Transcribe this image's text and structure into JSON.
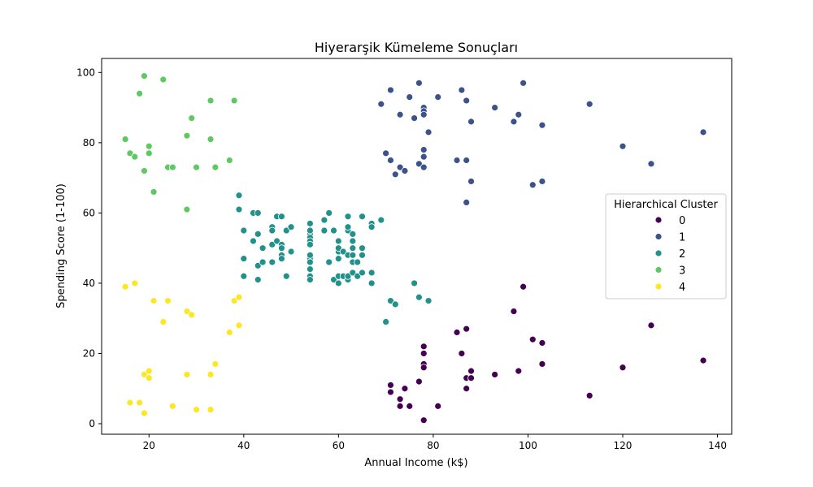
{
  "chart_data": {
    "type": "scatter",
    "title": "Hiyerarşik Kümeleme Sonuçları",
    "xlabel": "Annual Income (k$)",
    "ylabel": "Spending Score (1-100)",
    "xlim": [
      10,
      143
    ],
    "ylim": [
      -3,
      104
    ],
    "xticks": [
      20,
      40,
      60,
      80,
      100,
      120,
      140
    ],
    "yticks": [
      0,
      20,
      40,
      60,
      80,
      100
    ],
    "grid": false,
    "legend": {
      "title": "Hierarchical Cluster",
      "placement": "center-right"
    },
    "series": [
      {
        "name": "0",
        "color": "#440154",
        "points": [
          [
            71,
            11
          ],
          [
            71,
            9
          ],
          [
            73,
            5
          ],
          [
            73,
            7
          ],
          [
            74,
            10
          ],
          [
            75,
            5
          ],
          [
            77,
            12
          ],
          [
            78,
            22
          ],
          [
            78,
            17
          ],
          [
            78,
            16
          ],
          [
            78,
            20
          ],
          [
            78,
            1
          ],
          [
            81,
            5
          ],
          [
            85,
            26
          ],
          [
            86,
            20
          ],
          [
            87,
            27
          ],
          [
            87,
            13
          ],
          [
            87,
            10
          ],
          [
            88,
            13
          ],
          [
            88,
            15
          ],
          [
            93,
            14
          ],
          [
            97,
            32
          ],
          [
            98,
            15
          ],
          [
            99,
            39
          ],
          [
            101,
            24
          ],
          [
            103,
            17
          ],
          [
            103,
            23
          ],
          [
            113,
            8
          ],
          [
            120,
            16
          ],
          [
            126,
            28
          ],
          [
            137,
            18
          ]
        ]
      },
      {
        "name": "1",
        "color": "#3b528b",
        "points": [
          [
            69,
            91
          ],
          [
            70,
            77
          ],
          [
            71,
            95
          ],
          [
            71,
            75
          ],
          [
            72,
            71
          ],
          [
            73,
            88
          ],
          [
            73,
            73
          ],
          [
            74,
            72
          ],
          [
            75,
            93
          ],
          [
            76,
            87
          ],
          [
            77,
            97
          ],
          [
            77,
            74
          ],
          [
            78,
            90
          ],
          [
            78,
            89
          ],
          [
            78,
            88
          ],
          [
            78,
            78
          ],
          [
            78,
            76
          ],
          [
            78,
            73
          ],
          [
            79,
            83
          ],
          [
            81,
            93
          ],
          [
            85,
            75
          ],
          [
            86,
            95
          ],
          [
            87,
            92
          ],
          [
            87,
            75
          ],
          [
            87,
            63
          ],
          [
            88,
            86
          ],
          [
            88,
            69
          ],
          [
            93,
            90
          ],
          [
            97,
            86
          ],
          [
            98,
            88
          ],
          [
            99,
            97
          ],
          [
            101,
            68
          ],
          [
            103,
            85
          ],
          [
            103,
            69
          ],
          [
            113,
            91
          ],
          [
            120,
            79
          ],
          [
            126,
            74
          ],
          [
            137,
            83
          ]
        ]
      },
      {
        "name": "2",
        "color": "#21918c",
        "points": [
          [
            39,
            61
          ],
          [
            39,
            65
          ],
          [
            40,
            55
          ],
          [
            40,
            47
          ],
          [
            40,
            42
          ],
          [
            42,
            52
          ],
          [
            42,
            60
          ],
          [
            43,
            54
          ],
          [
            43,
            60
          ],
          [
            43,
            45
          ],
          [
            43,
            41
          ],
          [
            44,
            50
          ],
          [
            44,
            46
          ],
          [
            46,
            51
          ],
          [
            46,
            46
          ],
          [
            46,
            56
          ],
          [
            46,
            55
          ],
          [
            47,
            52
          ],
          [
            47,
            59
          ],
          [
            48,
            51
          ],
          [
            48,
            59
          ],
          [
            48,
            50
          ],
          [
            48,
            48
          ],
          [
            48,
            47
          ],
          [
            49,
            55
          ],
          [
            49,
            42
          ],
          [
            50,
            49
          ],
          [
            50,
            56
          ],
          [
            54,
            47
          ],
          [
            54,
            54
          ],
          [
            54,
            53
          ],
          [
            54,
            48
          ],
          [
            54,
            52
          ],
          [
            54,
            42
          ],
          [
            54,
            51
          ],
          [
            54,
            55
          ],
          [
            54,
            41
          ],
          [
            54,
            44
          ],
          [
            54,
            57
          ],
          [
            54,
            46
          ],
          [
            57,
            58
          ],
          [
            57,
            55
          ],
          [
            58,
            60
          ],
          [
            58,
            46
          ],
          [
            59,
            55
          ],
          [
            59,
            41
          ],
          [
            60,
            49
          ],
          [
            60,
            40
          ],
          [
            60,
            42
          ],
          [
            60,
            52
          ],
          [
            60,
            47
          ],
          [
            60,
            50
          ],
          [
            61,
            42
          ],
          [
            61,
            49
          ],
          [
            62,
            41
          ],
          [
            62,
            48
          ],
          [
            62,
            59
          ],
          [
            62,
            55
          ],
          [
            62,
            56
          ],
          [
            62,
            42
          ],
          [
            63,
            50
          ],
          [
            63,
            46
          ],
          [
            63,
            43
          ],
          [
            63,
            48
          ],
          [
            63,
            52
          ],
          [
            63,
            54
          ],
          [
            64,
            42
          ],
          [
            64,
            46
          ],
          [
            65,
            48
          ],
          [
            65,
            50
          ],
          [
            65,
            43
          ],
          [
            65,
            59
          ],
          [
            67,
            43
          ],
          [
            67,
            57
          ],
          [
            67,
            56
          ],
          [
            67,
            40
          ],
          [
            69,
            58
          ],
          [
            70,
            29
          ],
          [
            71,
            35
          ],
          [
            72,
            34
          ],
          [
            76,
            40
          ],
          [
            77,
            36
          ],
          [
            79,
            35
          ]
        ]
      },
      {
        "name": "3",
        "color": "#5ec962",
        "points": [
          [
            15,
            81
          ],
          [
            16,
            77
          ],
          [
            17,
            76
          ],
          [
            18,
            94
          ],
          [
            19,
            72
          ],
          [
            19,
            99
          ],
          [
            20,
            77
          ],
          [
            20,
            79
          ],
          [
            21,
            66
          ],
          [
            23,
            98
          ],
          [
            24,
            73
          ],
          [
            25,
            73
          ],
          [
            28,
            82
          ],
          [
            28,
            61
          ],
          [
            29,
            87
          ],
          [
            30,
            73
          ],
          [
            33,
            92
          ],
          [
            33,
            81
          ],
          [
            34,
            73
          ],
          [
            37,
            75
          ],
          [
            38,
            92
          ]
        ]
      },
      {
        "name": "4",
        "color": "#fde725",
        "points": [
          [
            15,
            39
          ],
          [
            16,
            6
          ],
          [
            17,
            40
          ],
          [
            18,
            6
          ],
          [
            19,
            3
          ],
          [
            19,
            14
          ],
          [
            20,
            15
          ],
          [
            20,
            13
          ],
          [
            21,
            35
          ],
          [
            23,
            29
          ],
          [
            24,
            35
          ],
          [
            25,
            5
          ],
          [
            28,
            14
          ],
          [
            28,
            32
          ],
          [
            29,
            31
          ],
          [
            30,
            4
          ],
          [
            33,
            4
          ],
          [
            33,
            14
          ],
          [
            34,
            17
          ],
          [
            37,
            26
          ],
          [
            38,
            35
          ],
          [
            39,
            36
          ],
          [
            39,
            28
          ]
        ]
      }
    ]
  }
}
